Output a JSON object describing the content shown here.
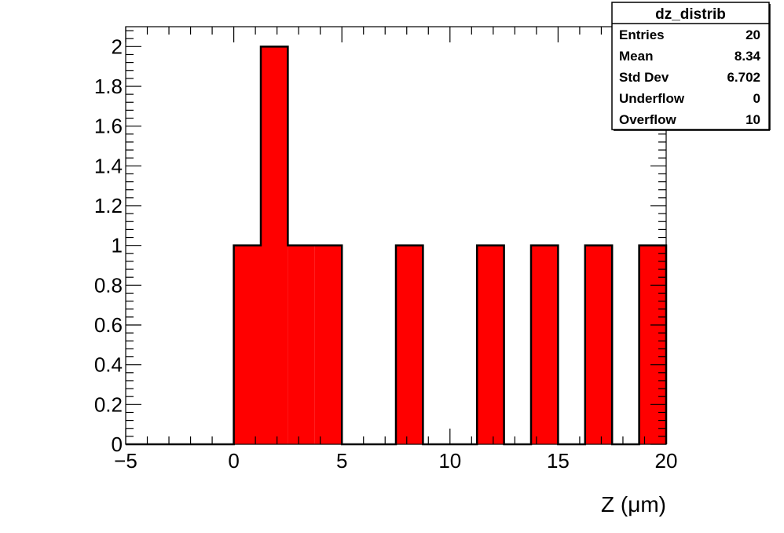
{
  "chart_data": {
    "type": "bar",
    "histogram_name": "dz_distrib",
    "bin_edges": [
      -5,
      -3.75,
      -2.5,
      -1.25,
      0,
      1.25,
      2.5,
      3.75,
      5,
      6.25,
      7.5,
      8.75,
      10,
      11.25,
      12.5,
      13.75,
      15,
      16.25,
      17.5,
      18.75,
      20
    ],
    "values": [
      0,
      0,
      0,
      0,
      1,
      2,
      1,
      1,
      0,
      0,
      1,
      0,
      0,
      1,
      0,
      1,
      0,
      1,
      0,
      1
    ],
    "bar_color": "#ff0000",
    "xlabel": "Z (μm)",
    "ylabel": "",
    "title": "",
    "xlim": [
      -5,
      20
    ],
    "ylim": [
      0,
      2.1
    ],
    "x_ticks": [
      {
        "value": -5,
        "label": "−5"
      },
      {
        "value": 0,
        "label": "0"
      },
      {
        "value": 5,
        "label": "5"
      },
      {
        "value": 10,
        "label": "10"
      },
      {
        "value": 15,
        "label": "15"
      },
      {
        "value": 20,
        "label": "20"
      }
    ],
    "y_ticks": [
      {
        "value": 0,
        "label": "0"
      },
      {
        "value": 0.2,
        "label": "0.2"
      },
      {
        "value": 0.4,
        "label": "0.4"
      },
      {
        "value": 0.6,
        "label": "0.6"
      },
      {
        "value": 0.8,
        "label": "0.8"
      },
      {
        "value": 1,
        "label": "1"
      },
      {
        "value": 1.2,
        "label": "1.2"
      },
      {
        "value": 1.4,
        "label": "1.4"
      },
      {
        "value": 1.6,
        "label": "1.6"
      },
      {
        "value": 1.8,
        "label": "1.8"
      },
      {
        "value": 2,
        "label": "2"
      }
    ],
    "grid": false,
    "legend": "none",
    "stats_box": {
      "title": "dz_distrib",
      "placement": "top-right",
      "rows": [
        {
          "label": "Entries",
          "value": "20"
        },
        {
          "label": "Mean",
          "value": "8.34"
        },
        {
          "label": "Std Dev",
          "value": "6.702"
        },
        {
          "label": "Underflow",
          "value": "0"
        },
        {
          "label": "Overflow",
          "value": "10"
        }
      ]
    }
  }
}
